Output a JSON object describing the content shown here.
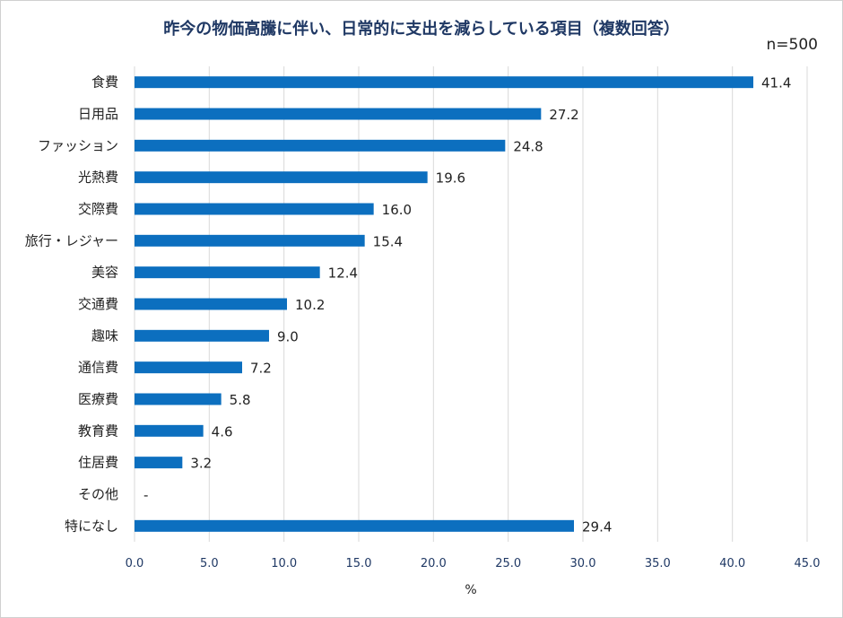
{
  "chart_data": {
    "type": "bar",
    "orientation": "horizontal",
    "title": "昨今の物価高騰に伴い、日常的に支出を減らしている項目（複数回答）",
    "subtitle": "n=500",
    "xlabel": "%",
    "xlim": [
      0,
      45
    ],
    "xticks": [
      "0.0",
      "5.0",
      "10.0",
      "15.0",
      "20.0",
      "25.0",
      "30.0",
      "35.0",
      "40.0",
      "45.0"
    ],
    "grid": true,
    "color": "#0c6fbf",
    "categories": [
      "食費",
      "日用品",
      "ファッション",
      "光熱費",
      "交際費",
      "旅行・レジャー",
      "美容",
      "交通費",
      "趣味",
      "通信費",
      "医療費",
      "教育費",
      "住居費",
      "その他",
      "特になし"
    ],
    "values": [
      41.4,
      27.2,
      24.8,
      19.6,
      16.0,
      15.4,
      12.4,
      10.2,
      9.0,
      7.2,
      5.8,
      4.6,
      3.2,
      null,
      29.4
    ],
    "labels": [
      "41.4",
      "27.2",
      "24.8",
      "19.6",
      "16.0",
      "15.4",
      "12.4",
      "10.2",
      "9.0",
      "7.2",
      "5.8",
      "4.6",
      "3.2",
      "-",
      "29.4"
    ]
  }
}
